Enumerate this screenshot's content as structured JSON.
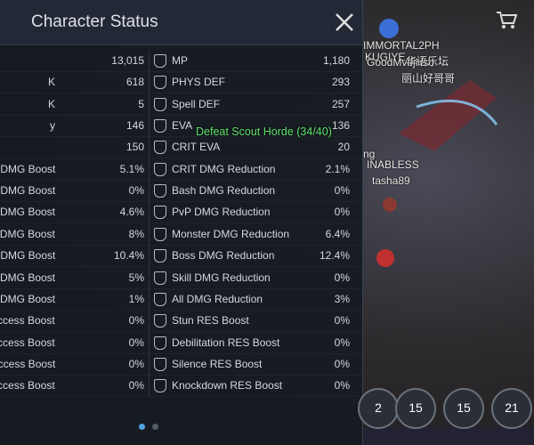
{
  "header": {
    "title": "Character Status"
  },
  "stats": {
    "rows": [
      {
        "left_value": "13,015",
        "right_label": "MP",
        "right_value": "1,180"
      },
      {
        "left_label": "K",
        "left_value": "618",
        "right_label": "PHYS DEF",
        "right_value": "293"
      },
      {
        "left_label": "K",
        "left_value": "5",
        "right_label": "Spell DEF",
        "right_value": "257"
      },
      {
        "left_label": "y",
        "left_value": "146",
        "right_label": "EVA",
        "right_value": "136"
      },
      {
        "left_value": "150",
        "right_label": "CRIT EVA",
        "right_value": "20"
      },
      {
        "left_label": "K DMG Boost",
        "left_value": "5.1%",
        "right_label": "CRIT DMG Reduction",
        "right_value": "2.1%"
      },
      {
        "left_label": "K DMG Boost",
        "left_value": "0%",
        "right_label": "Bash DMG Reduction",
        "right_value": "0%"
      },
      {
        "left_label": "DMG Boost",
        "left_value": "4.6%",
        "right_label": "PvP DMG Reduction",
        "right_value": "0%"
      },
      {
        "left_label": "ATK DMG Boost",
        "left_value": "8%",
        "right_label": "Monster DMG Reduction",
        "right_value": "6.4%"
      },
      {
        "left_label": "K DMG Boost",
        "left_value": "10.4%",
        "right_label": "Boss DMG Reduction",
        "right_value": "12.4%"
      },
      {
        "left_label": "DMG Boost",
        "left_value": "5%",
        "right_label": "Skill DMG Reduction",
        "right_value": "0%"
      },
      {
        "left_label": "DMG Boost",
        "left_value": "1%",
        "right_label": "All DMG Reduction",
        "right_value": "3%"
      },
      {
        "left_label": "ccess Boost",
        "left_value": "0%",
        "right_label": "Stun RES Boost",
        "right_value": "0%"
      },
      {
        "left_label": "ition Success Boost",
        "left_value": "0%",
        "right_label": "Debilitation RES Boost",
        "right_value": "0%"
      },
      {
        "left_label": "Success Boost",
        "left_value": "0%",
        "right_label": "Silence RES Boost",
        "right_value": "0%"
      },
      {
        "left_label": "own Success Boost",
        "left_value": "0%",
        "right_label": "Knockdown RES Boost",
        "right_value": "0%"
      }
    ]
  },
  "game": {
    "quest": "Defeat Scout Horde (34/40)",
    "names": [
      {
        "text": "IMMORTAL2PH"
      },
      {
        "text": "KUGIYE"
      },
      {
        "text": "GoodMvbjHso"
      },
      {
        "text": "华语乐坛"
      },
      {
        "text": "丽山好哥哥"
      },
      {
        "text": "ng"
      },
      {
        "text": "INABLESS"
      },
      {
        "text": "tasha89"
      }
    ],
    "skills": [
      "2",
      "15",
      "15",
      "21"
    ]
  }
}
